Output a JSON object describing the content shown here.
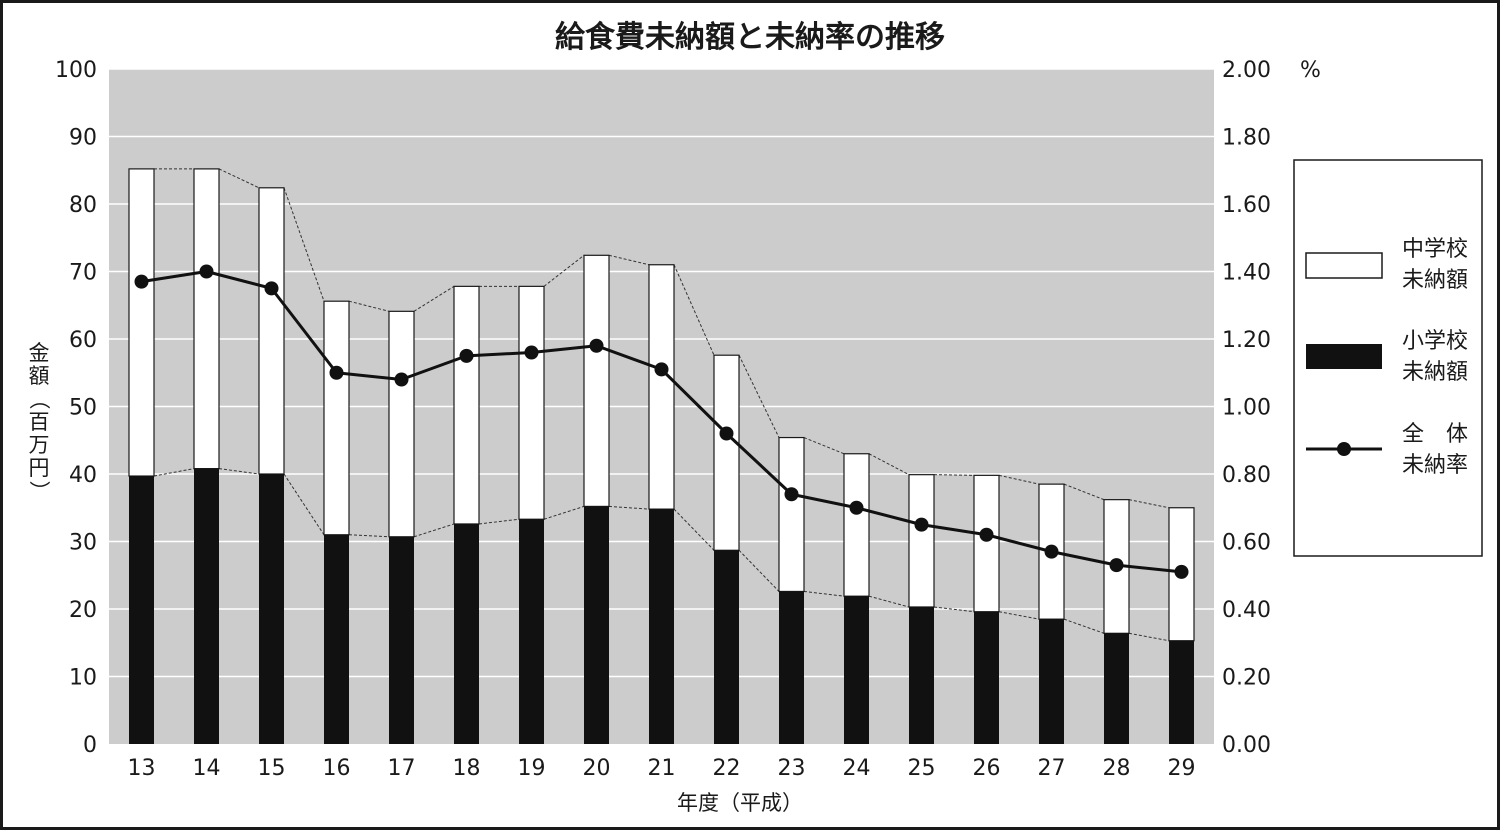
{
  "chart_data": {
    "type": "bar",
    "title": "給食費未納額と未納率の推移",
    "xlabel": "年度（平成）",
    "ylabel": "金額（百万円）",
    "y2label": "%",
    "categories": [
      "13",
      "14",
      "15",
      "16",
      "17",
      "18",
      "19",
      "20",
      "21",
      "22",
      "23",
      "24",
      "25",
      "26",
      "27",
      "28",
      "29"
    ],
    "ylim": [
      0,
      100
    ],
    "y2lim": [
      0,
      2.0
    ],
    "yticks": [
      "0",
      "10",
      "20",
      "30",
      "40",
      "50",
      "60",
      "70",
      "80",
      "90",
      "100"
    ],
    "y2ticks": [
      "0.00",
      "0.20",
      "0.40",
      "0.60",
      "0.80",
      "1.00",
      "1.20",
      "1.40",
      "1.60",
      "1.80",
      "2.00"
    ],
    "stacked": true,
    "grid": true,
    "legend_position": "right",
    "series": [
      {
        "name": "小学校未納額",
        "kind": "bar",
        "axis": "left",
        "color": "#111111",
        "values": [
          39.7,
          40.8,
          40.0,
          31.0,
          30.7,
          32.6,
          33.3,
          35.2,
          34.8,
          28.7,
          22.6,
          21.9,
          20.3,
          19.6,
          18.5,
          16.4,
          15.3
        ]
      },
      {
        "name": "中学校未納額",
        "kind": "bar",
        "axis": "left",
        "color": "#ffffff",
        "values": [
          45.5,
          44.4,
          42.4,
          34.6,
          33.4,
          35.2,
          34.5,
          37.2,
          36.2,
          28.9,
          22.8,
          21.1,
          19.6,
          20.2,
          20.0,
          19.8,
          19.7
        ]
      },
      {
        "name": "全体未納率",
        "kind": "line",
        "axis": "right",
        "color": "#111111",
        "values": [
          1.37,
          1.4,
          1.35,
          1.1,
          1.08,
          1.15,
          1.16,
          1.18,
          1.11,
          0.92,
          0.74,
          0.7,
          0.65,
          0.62,
          0.57,
          0.53,
          0.51
        ]
      }
    ]
  },
  "legend": {
    "middle_label_1": "中学校",
    "middle_label_2": "未納額",
    "elementary_label_1": "小学校",
    "elementary_label_2": "未納額",
    "rate_label_1": "全　体",
    "rate_label_2": "未納率"
  },
  "colors": {
    "plot_background": "#cccccc",
    "gridline": "#ffffff",
    "frame": "#1a1a1a"
  }
}
